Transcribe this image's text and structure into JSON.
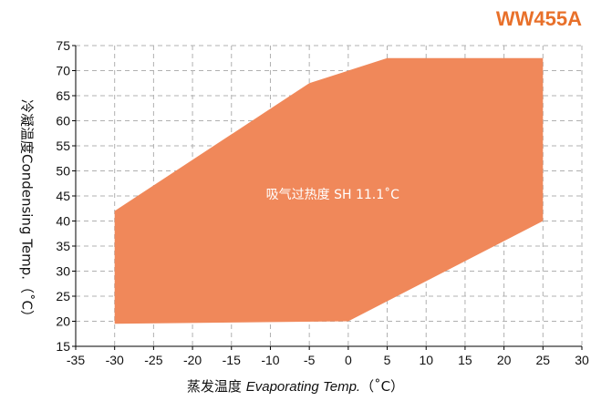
{
  "model": "WW455A",
  "chart_data": {
    "type": "area",
    "title": "WW455A",
    "annotation": "吸气过热度 SH 11.1˚C",
    "xlabel_cn": "蒸发温度",
    "xlabel_en": "Evaporating Temp.",
    "xlabel_unit": "（˚C）",
    "ylabel": "冷凝温度Condensing Temp.（˚C）",
    "xlim": [
      -35,
      30
    ],
    "ylim": [
      15,
      75
    ],
    "xticks": [
      -35,
      -30,
      -25,
      -20,
      -15,
      -10,
      -5,
      0,
      5,
      10,
      15,
      20,
      25,
      30
    ],
    "yticks": [
      15,
      20,
      25,
      30,
      35,
      40,
      45,
      50,
      55,
      60,
      65,
      70,
      75
    ],
    "grid": true,
    "fill_color": "#f0885a",
    "envelope": [
      {
        "x": -30,
        "y": 19.5
      },
      {
        "x": -30,
        "y": 42
      },
      {
        "x": -5,
        "y": 67.5
      },
      {
        "x": 5,
        "y": 72.5
      },
      {
        "x": 25,
        "y": 72.5
      },
      {
        "x": 25,
        "y": 40
      },
      {
        "x": 0,
        "y": 20
      }
    ]
  }
}
